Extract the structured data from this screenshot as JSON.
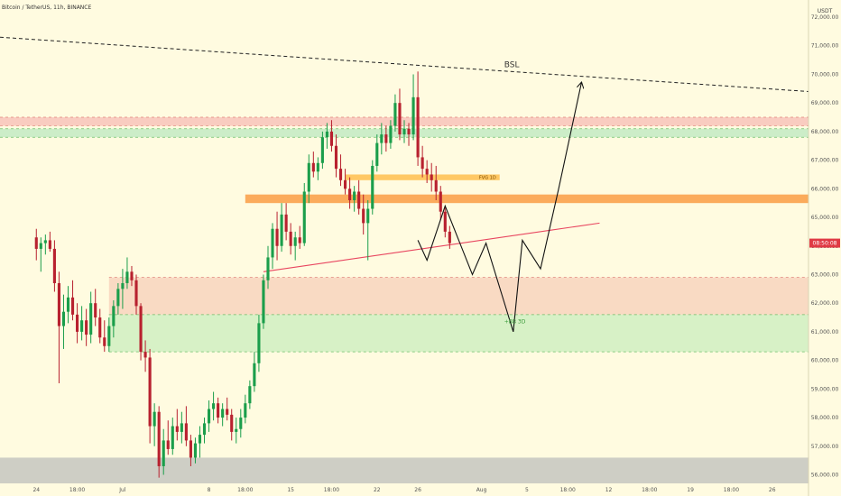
{
  "header": {
    "title": "Bitcoin / TetherUS, 11h, BINANCE"
  },
  "price_axis": {
    "unit": "USDT",
    "ticks": [
      "72,000.00",
      "71,000.00",
      "70,000.00",
      "69,000.00",
      "68,000.00",
      "67,000.00",
      "66,000.00",
      "65,000.00",
      "64,000.00",
      "63,000.00",
      "62,000.00",
      "61,000.00",
      "60,000.00",
      "59,000.00",
      "58,000.00",
      "57,000.00",
      "56,000.00"
    ],
    "tick_values": [
      72000,
      71000,
      70000,
      69000,
      68000,
      67000,
      66000,
      65000,
      64000,
      63000,
      62000,
      61000,
      60000,
      59000,
      58000,
      57000,
      56000
    ],
    "countdown": "08:50:08",
    "countdown_price": 64100
  },
  "time_axis": {
    "labels": [
      "24",
      "18:00",
      "Jul",
      "8",
      "18:00",
      "15",
      "18:00",
      "22",
      "26",
      "Aug",
      "5",
      "18:00",
      "12",
      "18:00",
      "19",
      "18:00",
      "26"
    ],
    "label_index": [
      0,
      9,
      19,
      38,
      46,
      56,
      65,
      75,
      84,
      98,
      108,
      117,
      126,
      135,
      144,
      153,
      162
    ]
  },
  "annotations": {
    "bsl_label": "BSL",
    "fvg_label": "FVG 1D",
    "ibb_label": "+BB 3D"
  },
  "chart_data": {
    "type": "candlestick",
    "symbol": "Bitcoin / TetherUS",
    "interval": "11h",
    "exchange": "BINANCE",
    "ylim": [
      55700,
      72600
    ],
    "x_range": [
      -8,
      170
    ],
    "grid": false,
    "candles": [
      {
        "o": 64300,
        "h": 64600,
        "l": 63500,
        "c": 63900
      },
      {
        "o": 63900,
        "h": 64300,
        "l": 63100,
        "c": 64100
      },
      {
        "o": 64100,
        "h": 64400,
        "l": 63700,
        "c": 64200
      },
      {
        "o": 64200,
        "h": 64500,
        "l": 63800,
        "c": 63900
      },
      {
        "o": 63900,
        "h": 64200,
        "l": 62400,
        "c": 62700
      },
      {
        "o": 62700,
        "h": 63100,
        "l": 59200,
        "c": 61200
      },
      {
        "o": 61200,
        "h": 62300,
        "l": 60400,
        "c": 61700
      },
      {
        "o": 61700,
        "h": 62600,
        "l": 61300,
        "c": 62200
      },
      {
        "o": 62200,
        "h": 62800,
        "l": 61400,
        "c": 61600
      },
      {
        "o": 61600,
        "h": 62000,
        "l": 60600,
        "c": 61000
      },
      {
        "o": 61000,
        "h": 61900,
        "l": 60700,
        "c": 61400
      },
      {
        "o": 61400,
        "h": 61800,
        "l": 60500,
        "c": 60900
      },
      {
        "o": 60900,
        "h": 62400,
        "l": 60600,
        "c": 62000
      },
      {
        "o": 62000,
        "h": 62500,
        "l": 61200,
        "c": 61500
      },
      {
        "o": 61500,
        "h": 61800,
        "l": 60600,
        "c": 60800
      },
      {
        "o": 60800,
        "h": 61400,
        "l": 60300,
        "c": 60500
      },
      {
        "o": 60500,
        "h": 61500,
        "l": 60300,
        "c": 61200
      },
      {
        "o": 61200,
        "h": 62100,
        "l": 60800,
        "c": 61900
      },
      {
        "o": 61900,
        "h": 62700,
        "l": 61600,
        "c": 62500
      },
      {
        "o": 62500,
        "h": 63200,
        "l": 61800,
        "c": 62700
      },
      {
        "o": 62700,
        "h": 63600,
        "l": 62500,
        "c": 63100
      },
      {
        "o": 63100,
        "h": 63300,
        "l": 62600,
        "c": 62800
      },
      {
        "o": 62800,
        "h": 63000,
        "l": 61600,
        "c": 61900
      },
      {
        "o": 61900,
        "h": 62000,
        "l": 60000,
        "c": 60300
      },
      {
        "o": 60300,
        "h": 60700,
        "l": 59600,
        "c": 60100
      },
      {
        "o": 60100,
        "h": 60400,
        "l": 57100,
        "c": 57700
      },
      {
        "o": 57700,
        "h": 58500,
        "l": 57000,
        "c": 58200
      },
      {
        "o": 58200,
        "h": 58400,
        "l": 55900,
        "c": 56300
      },
      {
        "o": 56300,
        "h": 57600,
        "l": 56000,
        "c": 57200
      },
      {
        "o": 57200,
        "h": 57900,
        "l": 56700,
        "c": 56900
      },
      {
        "o": 56900,
        "h": 58000,
        "l": 56700,
        "c": 57700
      },
      {
        "o": 57700,
        "h": 58300,
        "l": 57200,
        "c": 57500
      },
      {
        "o": 57500,
        "h": 58200,
        "l": 57100,
        "c": 57800
      },
      {
        "o": 57800,
        "h": 58400,
        "l": 57000,
        "c": 57200
      },
      {
        "o": 57200,
        "h": 57400,
        "l": 56300,
        "c": 56600
      },
      {
        "o": 56600,
        "h": 57300,
        "l": 56400,
        "c": 57100
      },
      {
        "o": 57100,
        "h": 57700,
        "l": 56600,
        "c": 57400
      },
      {
        "o": 57400,
        "h": 58000,
        "l": 57100,
        "c": 57800
      },
      {
        "o": 57800,
        "h": 58600,
        "l": 57500,
        "c": 58300
      },
      {
        "o": 58300,
        "h": 58900,
        "l": 57900,
        "c": 58500
      },
      {
        "o": 58500,
        "h": 58700,
        "l": 57800,
        "c": 58000
      },
      {
        "o": 58000,
        "h": 58500,
        "l": 57700,
        "c": 58300
      },
      {
        "o": 58300,
        "h": 58700,
        "l": 57900,
        "c": 58100
      },
      {
        "o": 58100,
        "h": 58300,
        "l": 57200,
        "c": 57500
      },
      {
        "o": 57500,
        "h": 58000,
        "l": 57100,
        "c": 57600
      },
      {
        "o": 57600,
        "h": 58300,
        "l": 57300,
        "c": 58000
      },
      {
        "o": 58000,
        "h": 58800,
        "l": 57800,
        "c": 58500
      },
      {
        "o": 58500,
        "h": 59300,
        "l": 58300,
        "c": 59100
      },
      {
        "o": 59100,
        "h": 60300,
        "l": 58900,
        "c": 59900
      },
      {
        "o": 59900,
        "h": 61600,
        "l": 59600,
        "c": 61300
      },
      {
        "o": 61300,
        "h": 63000,
        "l": 61100,
        "c": 62800
      },
      {
        "o": 62800,
        "h": 64000,
        "l": 62500,
        "c": 63600
      },
      {
        "o": 63600,
        "h": 64800,
        "l": 63200,
        "c": 64600
      },
      {
        "o": 64600,
        "h": 65200,
        "l": 63500,
        "c": 64000
      },
      {
        "o": 64000,
        "h": 65500,
        "l": 63800,
        "c": 65100
      },
      {
        "o": 65100,
        "h": 65500,
        "l": 64200,
        "c": 64500
      },
      {
        "o": 64500,
        "h": 64800,
        "l": 63700,
        "c": 64000
      },
      {
        "o": 64000,
        "h": 64500,
        "l": 63500,
        "c": 64300
      },
      {
        "o": 64300,
        "h": 64700,
        "l": 63900,
        "c": 64100
      },
      {
        "o": 64100,
        "h": 66200,
        "l": 64000,
        "c": 65900
      },
      {
        "o": 65900,
        "h": 67200,
        "l": 65500,
        "c": 66900
      },
      {
        "o": 66900,
        "h": 67300,
        "l": 66400,
        "c": 66600
      },
      {
        "o": 66600,
        "h": 67100,
        "l": 66300,
        "c": 66900
      },
      {
        "o": 66900,
        "h": 68000,
        "l": 66700,
        "c": 67800
      },
      {
        "o": 67800,
        "h": 68300,
        "l": 67400,
        "c": 68000
      },
      {
        "o": 68000,
        "h": 68400,
        "l": 67300,
        "c": 67500
      },
      {
        "o": 67500,
        "h": 67900,
        "l": 66400,
        "c": 66700
      },
      {
        "o": 66700,
        "h": 67200,
        "l": 66100,
        "c": 66300
      },
      {
        "o": 66300,
        "h": 66700,
        "l": 65800,
        "c": 66000
      },
      {
        "o": 66000,
        "h": 66400,
        "l": 65300,
        "c": 65600
      },
      {
        "o": 65600,
        "h": 66100,
        "l": 65200,
        "c": 65900
      },
      {
        "o": 65900,
        "h": 66300,
        "l": 65100,
        "c": 65300
      },
      {
        "o": 65300,
        "h": 65800,
        "l": 64400,
        "c": 64800
      },
      {
        "o": 64800,
        "h": 65600,
        "l": 63500,
        "c": 65300
      },
      {
        "o": 65300,
        "h": 67000,
        "l": 65100,
        "c": 66800
      },
      {
        "o": 66800,
        "h": 67900,
        "l": 66600,
        "c": 67600
      },
      {
        "o": 67600,
        "h": 68300,
        "l": 67200,
        "c": 67900
      },
      {
        "o": 67900,
        "h": 68200,
        "l": 67300,
        "c": 67600
      },
      {
        "o": 67600,
        "h": 68400,
        "l": 67400,
        "c": 68200
      },
      {
        "o": 68200,
        "h": 69300,
        "l": 68000,
        "c": 69000
      },
      {
        "o": 69000,
        "h": 69500,
        "l": 67700,
        "c": 67900
      },
      {
        "o": 67900,
        "h": 68400,
        "l": 67600,
        "c": 68100
      },
      {
        "o": 68100,
        "h": 68300,
        "l": 67500,
        "c": 67900
      },
      {
        "o": 67900,
        "h": 70000,
        "l": 67700,
        "c": 69200
      },
      {
        "o": 69200,
        "h": 70100,
        "l": 66800,
        "c": 67100
      },
      {
        "o": 67100,
        "h": 67500,
        "l": 66400,
        "c": 66700
      },
      {
        "o": 66700,
        "h": 67000,
        "l": 66200,
        "c": 66500
      },
      {
        "o": 66500,
        "h": 66900,
        "l": 65900,
        "c": 66300
      },
      {
        "o": 66300,
        "h": 66800,
        "l": 65600,
        "c": 65900
      },
      {
        "o": 65900,
        "h": 66100,
        "l": 64900,
        "c": 65200
      },
      {
        "o": 65200,
        "h": 65400,
        "l": 64300,
        "c": 64500
      },
      {
        "o": 64500,
        "h": 64700,
        "l": 63900,
        "c": 64100
      }
    ],
    "levels": [
      {
        "name": "red-zone-top",
        "y_top": 68500,
        "y_bottom": 68200,
        "color": "#f8c6bd"
      },
      {
        "name": "green-zone-top",
        "y_top": 68100,
        "y_bottom": 67800,
        "color": "#c7ebc5"
      },
      {
        "name": "fvg-1d",
        "label": "FVG 1D",
        "y_top": 66500,
        "y_bottom": 66300,
        "x_from": 68,
        "x_to": 102,
        "color": "#ffc256"
      },
      {
        "name": "orange-zone",
        "y_top": 65800,
        "y_bottom": 65500,
        "x_from": 46,
        "color": "#fba24e"
      },
      {
        "name": "red-zone-mid",
        "y_top": 62900,
        "y_bottom": 61600,
        "x_from": 16,
        "color": "#f8d6c0"
      },
      {
        "name": "green-zone-mid",
        "label": "+BB 3D",
        "y_top": 61600,
        "y_bottom": 60300,
        "x_from": 16,
        "color": "#d3efc3"
      },
      {
        "name": "grey-zone-bottom",
        "y_top": 56600,
        "y_bottom": 55700,
        "color": "#c9c9c2"
      }
    ],
    "lines": [
      {
        "name": "bsl-line",
        "label": "BSL",
        "style": "dashed",
        "color": "#222222",
        "points": [
          [
            -8,
            71300
          ],
          [
            170,
            69400
          ]
        ]
      },
      {
        "name": "support-trendline",
        "style": "solid",
        "color": "#e8455f",
        "points": [
          [
            50,
            63100
          ],
          [
            124,
            64800
          ]
        ]
      }
    ],
    "projection": {
      "points": [
        [
          84,
          64200
        ],
        [
          86,
          63500
        ],
        [
          90,
          65400
        ],
        [
          96,
          63000
        ],
        [
          99,
          64100
        ],
        [
          105,
          61000
        ],
        [
          107,
          64200
        ],
        [
          111,
          63200
        ],
        [
          115,
          66000
        ],
        [
          120,
          69700
        ]
      ]
    }
  }
}
